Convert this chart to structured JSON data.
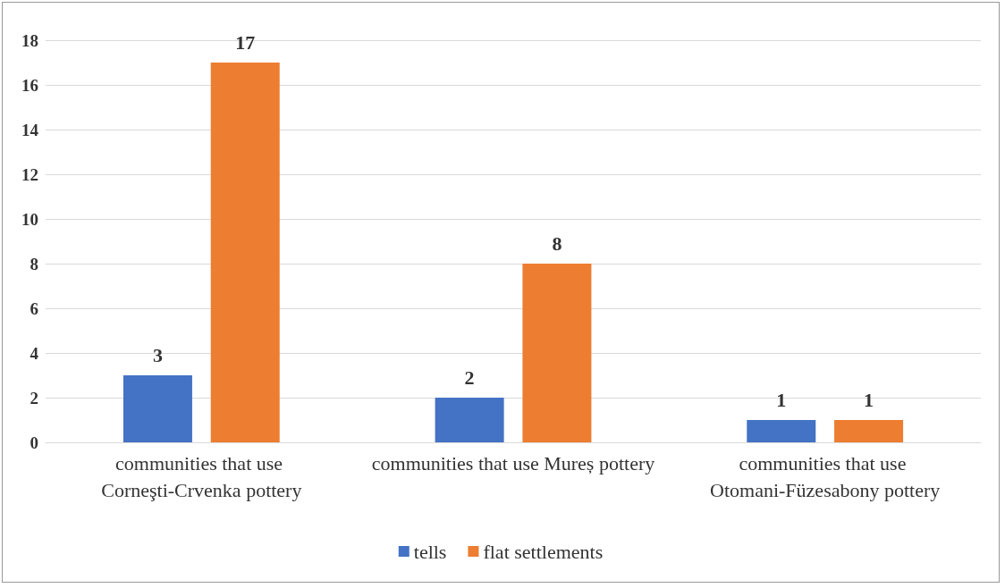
{
  "chart_data": {
    "type": "bar",
    "categories": [
      "communities that use Corneşti-Crvenka pottery",
      "communities that use Mureș pottery",
      "communities that use Otomani-Füzesabony pottery"
    ],
    "series": [
      {
        "name": "tells",
        "color": "#4472c4",
        "values": [
          3,
          2,
          1
        ]
      },
      {
        "name": "flat settlements",
        "color": "#ed7d31",
        "values": [
          17,
          8,
          1
        ]
      }
    ],
    "ylim": [
      0,
      18
    ],
    "yticks": [
      0,
      2,
      4,
      6,
      8,
      10,
      12,
      14,
      16,
      18
    ],
    "grid": "y",
    "legend": "bottom",
    "data_labels": true
  }
}
